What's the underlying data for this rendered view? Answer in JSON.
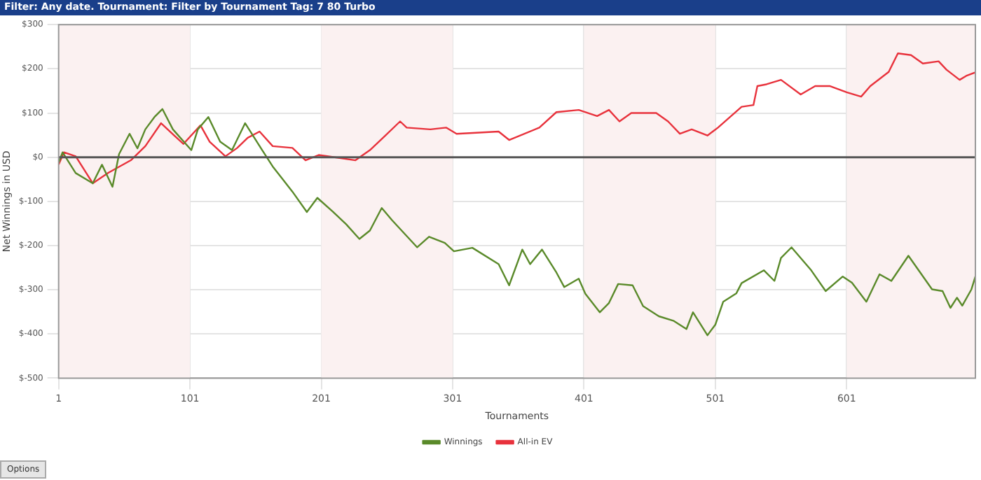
{
  "chart_data": {
    "type": "line",
    "title": "Filter: Any date. Tournament: Filter by Tournament Tag: 7 80 Turbo",
    "xlabel": "Tournaments",
    "ylabel": "Net Winnings in USD",
    "annotations": [
      "Options"
    ],
    "xlim": [
      1,
      699
    ],
    "xticks": [
      1,
      101,
      201,
      301,
      401,
      501,
      601
    ],
    "ylim": [
      -500,
      300
    ],
    "yticks": [
      {
        "value": 300,
        "label": "$300"
      },
      {
        "value": 200,
        "label": "$200"
      },
      {
        "value": 100,
        "label": "$100"
      },
      {
        "value": 0,
        "label": "$0"
      },
      {
        "value": -100,
        "label": "$-100"
      },
      {
        "value": -200,
        "label": "$-200"
      },
      {
        "value": -300,
        "label": "$-300"
      },
      {
        "value": -400,
        "label": "$-400"
      },
      {
        "value": -500,
        "label": "$-500"
      }
    ],
    "grid": true,
    "legend": "bottom",
    "marker": "none",
    "line_style": "solid",
    "ref_lines": [
      {
        "axis": "y",
        "value": 0,
        "color": "#555555"
      }
    ],
    "bands": [
      {
        "axis": "x",
        "from": 1,
        "to": 101,
        "color": "#fbf1f1"
      },
      {
        "axis": "x",
        "from": 201,
        "to": 301,
        "color": "#fbf1f1"
      },
      {
        "axis": "x",
        "from": 401,
        "to": 501,
        "color": "#fbf1f1"
      },
      {
        "axis": "x",
        "from": 601,
        "to": 699,
        "color": "#fbf1f1"
      }
    ],
    "series": [
      {
        "name": "Winnings",
        "color": "#5a8a2a",
        "x": [
          1,
          4,
          14,
          27,
          34,
          42,
          47,
          55,
          61,
          67,
          74,
          80,
          88,
          102,
          107,
          115,
          124,
          133,
          143,
          156,
          164,
          179,
          190,
          198,
          210,
          220,
          230,
          238,
          247,
          255,
          274,
          283,
          295,
          302,
          316,
          336,
          344,
          354,
          360,
          369,
          380,
          386,
          397,
          402,
          413,
          420,
          427,
          438,
          446,
          458,
          469,
          479,
          484,
          495,
          501,
          507,
          517,
          521,
          538,
          546,
          551,
          559,
          574,
          585,
          598,
          605,
          616,
          626,
          635,
          648,
          666,
          674,
          680,
          685,
          689,
          696,
          699
        ],
        "values": [
          -12,
          11,
          -36,
          -59,
          -17,
          -67,
          7,
          53,
          20,
          63,
          91,
          109,
          63,
          16,
          63,
          91,
          35,
          16,
          77,
          16,
          -21,
          -78,
          -124,
          -92,
          -124,
          -152,
          -185,
          -166,
          -115,
          -143,
          -204,
          -180,
          -194,
          -213,
          -205,
          -242,
          -290,
          -209,
          -242,
          -209,
          -261,
          -294,
          -275,
          -309,
          -351,
          -330,
          -287,
          -290,
          -337,
          -360,
          -370,
          -389,
          -351,
          -403,
          -379,
          -327,
          -308,
          -285,
          -256,
          -280,
          -228,
          -204,
          -256,
          -303,
          -270,
          -284,
          -327,
          -265,
          -280,
          -223,
          -299,
          -303,
          -341,
          -318,
          -336,
          -299,
          -270
        ]
      },
      {
        "name": "All-in EV",
        "color": "#e8323c",
        "x": [
          1,
          5,
          14,
          27,
          39,
          56,
          67,
          79,
          89,
          96,
          109,
          116,
          128,
          137,
          145,
          154,
          164,
          179,
          189,
          199,
          213,
          227,
          238,
          248,
          261,
          266,
          284,
          296,
          304,
          336,
          344,
          367,
          380,
          397,
          411,
          420,
          428,
          437,
          456,
          465,
          474,
          483,
          495,
          503,
          521,
          530,
          533,
          540,
          551,
          566,
          577,
          588,
          601,
          612,
          619,
          633,
          640,
          650,
          659,
          671,
          677,
          687,
          692,
          699
        ],
        "values": [
          -17,
          11,
          2,
          -59,
          -35,
          -7,
          25,
          77,
          49,
          30,
          72,
          35,
          2,
          21,
          44,
          58,
          25,
          21,
          -7,
          5,
          -1,
          -7,
          16,
          44,
          81,
          67,
          63,
          67,
          53,
          58,
          39,
          67,
          102,
          107,
          93,
          107,
          81,
          100,
          100,
          81,
          53,
          63,
          49,
          67,
          114,
          118,
          161,
          165,
          175,
          142,
          161,
          161,
          147,
          137,
          161,
          193,
          235,
          231,
          212,
          217,
          198,
          175,
          184,
          192
        ]
      }
    ]
  }
}
